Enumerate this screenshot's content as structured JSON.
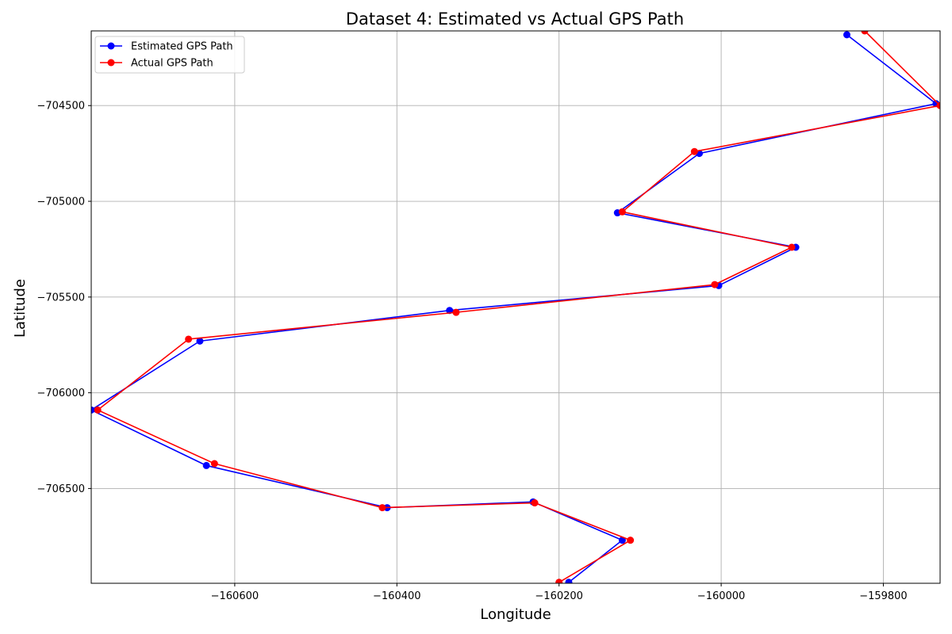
{
  "chart_data": {
    "type": "line",
    "title": "Dataset 4: Estimated vs Actual GPS Path",
    "xlabel": "Longitude",
    "ylabel": "Latitude",
    "xlim": [
      -160777,
      -159730
    ],
    "ylim": [
      -706995,
      -704110
    ],
    "xticks": [
      -160600,
      -160400,
      -160200,
      -160000,
      -159800
    ],
    "xtick_labels": [
      "−160600",
      "−160400",
      "−160200",
      "−160000",
      "−159800"
    ],
    "yticks": [
      -704500,
      -705000,
      -705500,
      -706000,
      -706500
    ],
    "ytick_labels": [
      "−704500",
      "−705000",
      "−705500",
      "−706000",
      "−706500"
    ],
    "grid": true,
    "legend_position": "top-left",
    "series": [
      {
        "name": "Estimated GPS Path",
        "color": "#0000ff",
        "x": [
          -159845,
          -159735,
          -160027,
          -160128,
          -159908,
          -160003,
          -160335,
          -160643,
          -160777,
          -160635,
          -160412,
          -160232,
          -160122,
          -160188
        ],
        "y": [
          -704130,
          -704490,
          -704750,
          -705060,
          -705240,
          -705440,
          -705570,
          -705730,
          -706090,
          -706380,
          -706600,
          -706570,
          -706770,
          -706990
        ]
      },
      {
        "name": "Actual GPS Path",
        "color": "#ff0000",
        "x": [
          -159823,
          -159730,
          -160033,
          -160122,
          -159913,
          -160008,
          -160327,
          -160657,
          -160769,
          -160625,
          -160418,
          -160230,
          -160112,
          -160200
        ],
        "y": [
          -704110,
          -704500,
          -704740,
          -705055,
          -705240,
          -705435,
          -705580,
          -705720,
          -706090,
          -706370,
          -706600,
          -706575,
          -706770,
          -706990
        ]
      }
    ]
  }
}
